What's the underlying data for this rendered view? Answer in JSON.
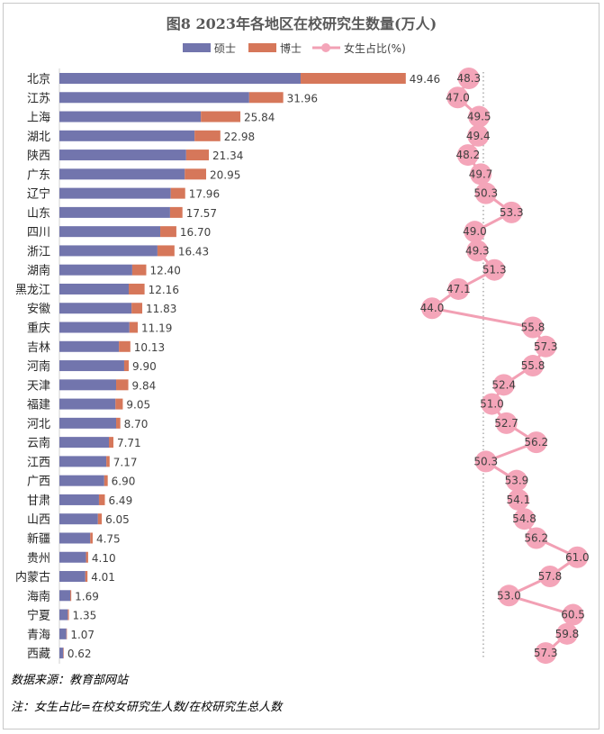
{
  "chart_data": {
    "type": "bar",
    "title": "图8  2023年各地区在校研究生数量(万人)",
    "legend": [
      "硕士",
      "博士",
      "女生占比(%)"
    ],
    "legend_position": "top",
    "categories": [
      "北京",
      "江苏",
      "上海",
      "湖北",
      "陕西",
      "广东",
      "辽宁",
      "山东",
      "四川",
      "浙江",
      "湖南",
      "黑龙江",
      "安徽",
      "重庆",
      "吉林",
      "河南",
      "天津",
      "福建",
      "河北",
      "云南",
      "江西",
      "广西",
      "甘肃",
      "山西",
      "新疆",
      "贵州",
      "内蒙古",
      "海南",
      "宁夏",
      "青海",
      "西藏"
    ],
    "series": [
      {
        "name": "硕士",
        "values": [
          34.45,
          27.1,
          20.2,
          19.3,
          18.1,
          17.9,
          15.9,
          15.8,
          14.4,
          14.0,
          10.4,
          9.9,
          10.3,
          10.0,
          8.5,
          9.25,
          8.1,
          8.0,
          8.1,
          7.07,
          6.7,
          6.4,
          5.65,
          5.5,
          4.4,
          3.8,
          3.7,
          1.55,
          1.2,
          1.0,
          0.55
        ]
      },
      {
        "name": "博士",
        "values": [
          15.01,
          4.86,
          5.64,
          3.68,
          3.24,
          3.05,
          2.06,
          1.77,
          2.3,
          2.43,
          2.0,
          2.26,
          1.53,
          1.19,
          1.63,
          0.65,
          1.74,
          1.05,
          0.6,
          0.64,
          0.47,
          0.5,
          0.84,
          0.55,
          0.35,
          0.3,
          0.31,
          0.14,
          0.15,
          0.07,
          0.07
        ]
      }
    ],
    "totals": [
      "49.46",
      "31.96",
      "25.84",
      "22.98",
      "21.34",
      "20.95",
      "17.96",
      "17.57",
      "16.70",
      "16.43",
      "12.40",
      "12.16",
      "11.83",
      "11.19",
      "10.13",
      "9.90",
      "9.84",
      "9.05",
      "8.70",
      "7.71",
      "7.17",
      "6.90",
      "6.49",
      "6.05",
      "4.75",
      "4.10",
      "4.01",
      "1.69",
      "1.35",
      "1.07",
      "0.62"
    ],
    "female_ratio": [
      "48.3",
      "47.0",
      "49.5",
      "49.4",
      "48.2",
      "49.7",
      "50.3",
      "53.3",
      "49.0",
      "49.3",
      "51.3",
      "47.1",
      "44.0",
      "55.8",
      "57.3",
      "55.8",
      "52.4",
      "51.0",
      "52.7",
      "56.2",
      "50.3",
      "53.9",
      "54.1",
      "54.8",
      "56.2",
      "61.0",
      "57.8",
      "53.0",
      "60.5",
      "59.8",
      "57.3"
    ],
    "female_ratio_reference": 50,
    "xlim": [
      0,
      50
    ],
    "colors": {
      "master": "#7275ad",
      "phd": "#d6775a",
      "female": "#f4a5b9",
      "female_line": "#f2a0b4"
    }
  },
  "footer": {
    "source": "数据来源：教育部网站",
    "note": "注：女生占比=在校女研究生人数/在校研究生总人数"
  }
}
